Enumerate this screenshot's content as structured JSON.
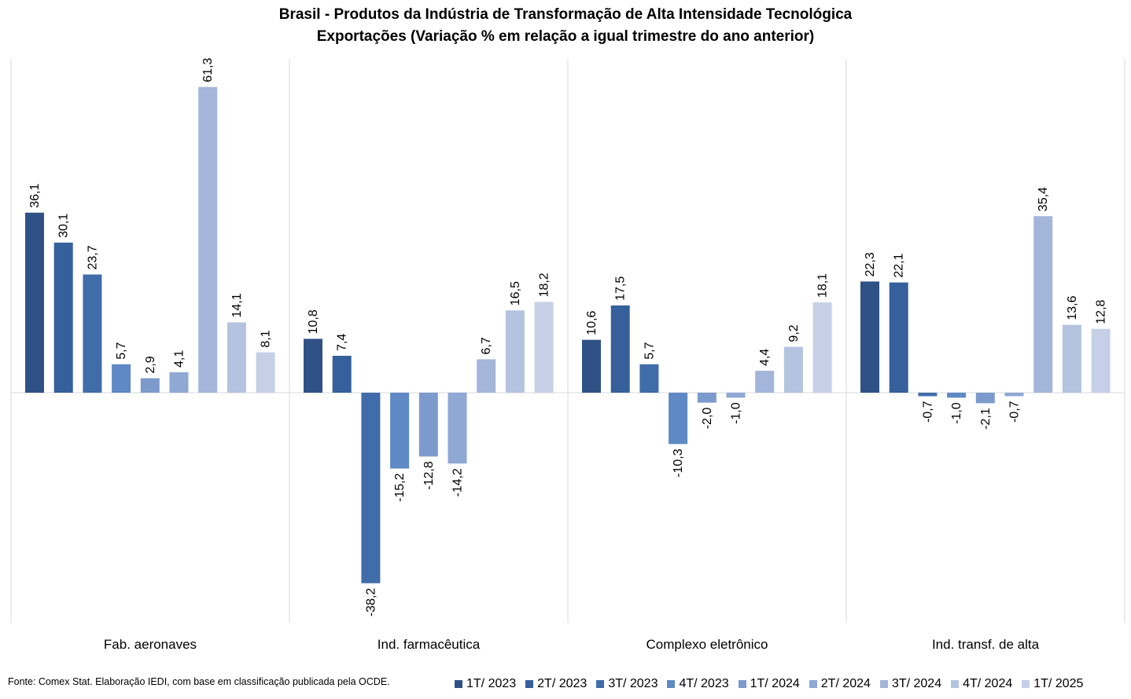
{
  "chart_data": {
    "type": "bar",
    "title": "Brasil - Produtos da Indústria de Transformação de Alta Intensidade Tecnológica",
    "subtitle": "Exportações (Variação % em relação a igual trimestre do ano anterior)",
    "categories": [
      "Fab. aeronaves",
      "Ind. farmacêutica",
      "Complexo eletrônico",
      "Ind. transf. de alta"
    ],
    "series": [
      {
        "name": "1T/ 2023",
        "color": "#2F5186",
        "values": [
          36.1,
          10.8,
          10.6,
          22.3
        ],
        "labels": [
          "36,1",
          "10,8",
          "10,6",
          "22,3"
        ]
      },
      {
        "name": "2T/ 2023",
        "color": "#36609C",
        "values": [
          30.1,
          7.4,
          17.5,
          22.1
        ],
        "labels": [
          "30,1",
          "7,4",
          "17,5",
          "22,1"
        ]
      },
      {
        "name": "3T/ 2023",
        "color": "#406CAA",
        "values": [
          23.7,
          -38.2,
          5.7,
          -0.7
        ],
        "labels": [
          "23,7",
          "-38,2",
          "5,7",
          "-0,7"
        ]
      },
      {
        "name": "4T/ 2023",
        "color": "#5E89C4",
        "values": [
          5.7,
          -15.2,
          -10.3,
          -1.0
        ],
        "labels": [
          "5,7",
          "-15,2",
          "-10,3",
          "-1,0"
        ]
      },
      {
        "name": "1T/ 2024",
        "color": "#7D9ACC",
        "values": [
          2.9,
          -12.8,
          -2.0,
          -2.1
        ],
        "labels": [
          "2,9",
          "-12,8",
          "-2,0",
          "-2,1"
        ]
      },
      {
        "name": "2T/ 2024",
        "color": "#8FA8D4",
        "values": [
          4.1,
          -14.2,
          -1.0,
          -0.7
        ],
        "labels": [
          "4,1",
          "-14,2",
          "-1,0",
          "-0,7"
        ]
      },
      {
        "name": "3T/ 2024",
        "color": "#A3B5D9",
        "values": [
          61.3,
          6.7,
          4.4,
          35.4
        ],
        "labels": [
          "61,3",
          "6,7",
          "4,4",
          "35,4"
        ]
      },
      {
        "name": "4T/ 2024",
        "color": "#B4C3E0",
        "values": [
          14.1,
          16.5,
          9.2,
          13.6
        ],
        "labels": [
          "14,1",
          "16,5",
          "9,2",
          "13,6"
        ]
      },
      {
        "name": "1T/ 2025",
        "color": "#C5D0E7",
        "values": [
          8.1,
          18.2,
          18.1,
          12.8
        ],
        "labels": [
          "8,1",
          "18,2",
          "18,1",
          "12,8"
        ]
      }
    ],
    "ylim": [
      -45,
      68
    ],
    "grid": false,
    "legend_position": "bottom-right",
    "xlabel": "",
    "ylabel": ""
  },
  "source": "Fonte: Comex Stat. Elaboração IEDI, com base em classificação publicada pela OCDE."
}
